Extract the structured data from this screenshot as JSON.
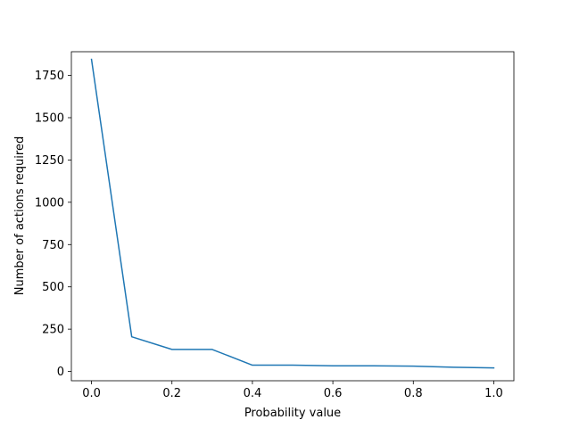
{
  "chart_data": {
    "type": "line",
    "title": "",
    "xlabel": "Probability value",
    "ylabel": "Number of actions required",
    "xlim": [
      -0.05,
      1.05
    ],
    "ylim": [
      -55,
      1890
    ],
    "x_ticks": [
      0.0,
      0.2,
      0.4,
      0.6,
      0.8,
      1.0
    ],
    "x_tick_labels": [
      "0.0",
      "0.2",
      "0.4",
      "0.6",
      "0.8",
      "1.0"
    ],
    "y_ticks": [
      0,
      250,
      500,
      750,
      1000,
      1250,
      1500,
      1750
    ],
    "y_tick_labels": [
      "0",
      "250",
      "500",
      "750",
      "1000",
      "1250",
      "1500",
      "1750"
    ],
    "grid": false,
    "legend": "none",
    "series": [
      {
        "color": "#1f77b4",
        "x": [
          0.0,
          0.1,
          0.2,
          0.3,
          0.4,
          0.5,
          0.6,
          0.7,
          0.8,
          0.9,
          1.0
        ],
        "y": [
          1845,
          205,
          130,
          130,
          37,
          37,
          33,
          33,
          31,
          25,
          21
        ]
      }
    ]
  }
}
